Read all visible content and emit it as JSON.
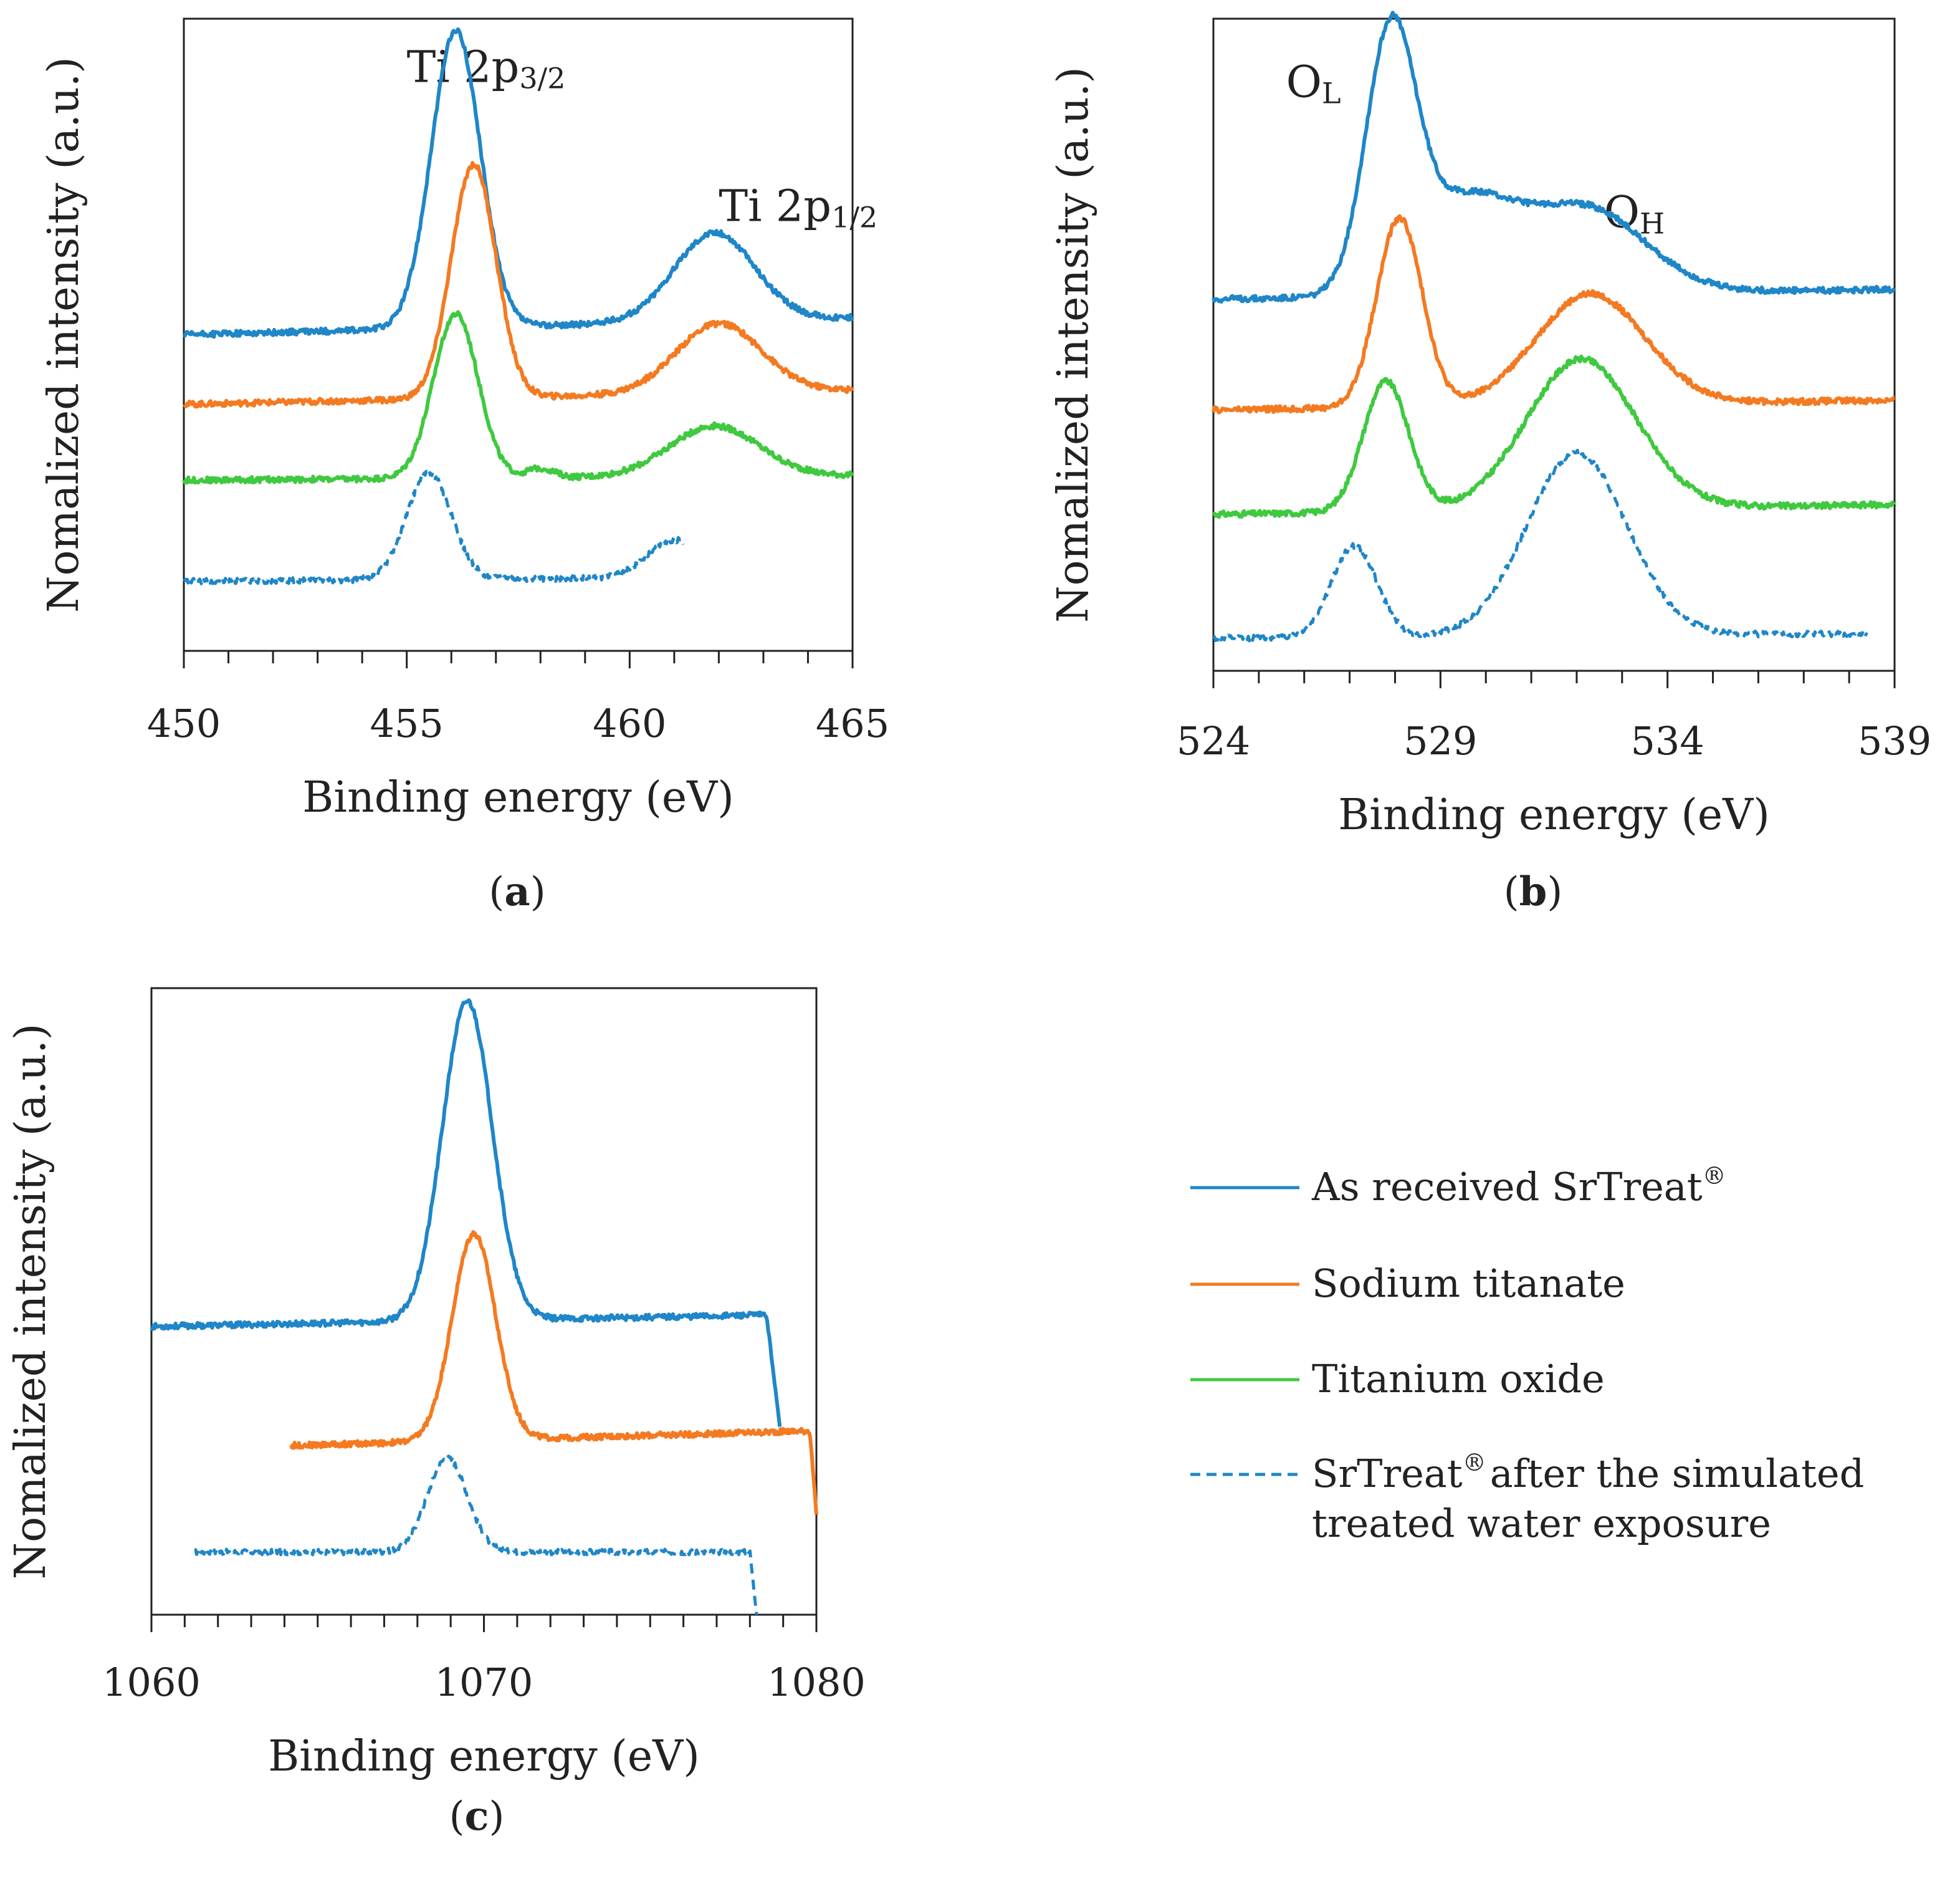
{
  "colors": {
    "as_received": "#1f86c8",
    "sodium_titanate": "#f47a21",
    "titanium_oxide": "#3fc93f",
    "after_exposure": "#1f86c8"
  },
  "legend": {
    "items": [
      {
        "key": "as_received",
        "style": "solid",
        "label": "As received SrTreat",
        "sup": "®",
        "label2": ""
      },
      {
        "key": "sodium_titanate",
        "style": "solid",
        "label": "Sodium titanate",
        "sup": "",
        "label2": ""
      },
      {
        "key": "titanium_oxide",
        "style": "solid",
        "label": "Titanium oxide",
        "sup": "",
        "label2": ""
      },
      {
        "key": "after_exposure",
        "style": "dashed",
        "label": "SrTreat",
        "sup": "®",
        "label2": "after the simulated",
        "label3": "treated water exposure"
      }
    ]
  },
  "chart_data": [
    {
      "id": "a",
      "type": "line",
      "panel_label": "(a)",
      "xlabel": "Binding energy (eV)",
      "ylabel": "Nomalized intensity (a.u.)",
      "xlim": [
        450,
        465
      ],
      "ylim": [
        0,
        100
      ],
      "xticks": [
        450,
        455,
        460,
        465
      ],
      "annotations": [
        {
          "main": "Ti 2p",
          "sub": "3/2",
          "x": 455.0,
          "y": 90
        },
        {
          "main": "Ti 2p",
          "sub": "1/2",
          "x": 462.0,
          "y": 68
        }
      ],
      "series": [
        {
          "name": "As received SrTreat®",
          "key": "as_received",
          "style": "solid",
          "baseline": 50,
          "slope": 0.18,
          "peaks": [
            [
              456.1,
              47,
              0.55
            ],
            [
              461.9,
              14,
              0.9
            ]
          ],
          "xrange": [
            450,
            465
          ]
        },
        {
          "name": "Sodium titanate",
          "key": "sodium_titanate",
          "style": "solid",
          "baseline": 39,
          "slope": 0.15,
          "peaks": [
            [
              456.5,
              37,
              0.5
            ],
            [
              462.0,
              11,
              0.95
            ]
          ],
          "xrange": [
            450,
            465
          ]
        },
        {
          "name": "Titanium oxide",
          "key": "titanium_oxide",
          "style": "solid",
          "baseline": 27,
          "slope": 0.05,
          "peaks": [
            [
              456.1,
              26,
              0.5
            ],
            [
              461.9,
              8,
              1.0
            ],
            [
              458.0,
              1.5,
              0.3
            ]
          ],
          "xrange": [
            450,
            465
          ]
        },
        {
          "name": "SrTreat® after the simulated treated water exposure",
          "key": "after_exposure",
          "style": "dashed",
          "baseline": 11,
          "slope": 0.05,
          "peaks": [
            [
              455.5,
              17,
              0.5
            ],
            [
              461.0,
              6,
              0.6
            ]
          ],
          "xrange": [
            450,
            461.2
          ]
        }
      ]
    },
    {
      "id": "b",
      "type": "line",
      "panel_label": "(b)",
      "xlabel": "Binding energy (eV)",
      "ylabel": "Nomalized intensity (a.u.)",
      "xlim": [
        524,
        539
      ],
      "ylim": [
        0,
        100
      ],
      "xticks": [
        524,
        529,
        534,
        539
      ],
      "annotations": [
        {
          "main": "O",
          "sub": "L",
          "x": 525.6,
          "y": 88
        },
        {
          "main": "O",
          "sub": "H",
          "x": 532.6,
          "y": 68
        }
      ],
      "series": [
        {
          "name": "As received SrTreat®",
          "key": "as_received",
          "style": "solid",
          "baseline": 57,
          "slope": 0.1,
          "peaks": [
            [
              527.9,
              38,
              0.55
            ],
            [
              529.5,
              14,
              1.1
            ],
            [
              532.2,
              13,
              1.3
            ]
          ],
          "xrange": [
            524,
            539
          ]
        },
        {
          "name": "Sodium titanate",
          "key": "sodium_titanate",
          "style": "solid",
          "baseline": 40,
          "slope": 0.1,
          "peaks": [
            [
              528.1,
              29,
              0.5
            ],
            [
              532.3,
              17,
              1.2
            ]
          ],
          "xrange": [
            524,
            539
          ]
        },
        {
          "name": "Titanium oxide",
          "key": "titanium_oxide",
          "style": "solid",
          "baseline": 24,
          "slope": 0.1,
          "peaks": [
            [
              527.8,
              20,
              0.5
            ],
            [
              532.1,
              23,
              1.2
            ]
          ],
          "xrange": [
            524,
            539
          ]
        },
        {
          "name": "SrTreat® after the simulated treated water exposure",
          "key": "after_exposure",
          "style": "dashed",
          "baseline": 5,
          "slope": 0.05,
          "peaks": [
            [
              527.1,
              14,
              0.5
            ],
            [
              532.0,
              28,
              1.1
            ]
          ],
          "xrange": [
            524,
            538.4
          ]
        }
      ]
    },
    {
      "id": "c",
      "type": "line",
      "panel_label": "(c)",
      "xlabel": "Binding energy (eV)",
      "ylabel": "Nomalized intensity (a.u.)",
      "xlim": [
        1060,
        1080
      ],
      "ylim": [
        0,
        100
      ],
      "xticks": [
        1060,
        1070,
        1080
      ],
      "annotations": [],
      "series": [
        {
          "name": "As received SrTreat®",
          "key": "as_received",
          "style": "solid",
          "baseline": 46,
          "slope": 0.1,
          "peaks": [
            [
              1069.5,
              51,
              0.75
            ]
          ],
          "xrange": [
            1060,
            1078.9
          ],
          "dropoff": [
            1078.5,
            1078.9,
            30
          ]
        },
        {
          "name": "Sodium titanate",
          "key": "sodium_titanate",
          "style": "solid",
          "baseline": 27,
          "slope": 0.15,
          "peaks": [
            [
              1069.7,
              33,
              0.65
            ]
          ],
          "xrange": [
            1064.2,
            1080
          ],
          "dropoff": [
            1079.8,
            1080,
            16
          ]
        },
        {
          "name": "SrTreat® after the simulated treated water exposure",
          "key": "after_exposure",
          "style": "dashed",
          "baseline": 10,
          "slope": 0.0,
          "peaks": [
            [
              1068.9,
              15,
              0.6
            ]
          ],
          "xrange": [
            1061.3,
            1078.2
          ],
          "dropoff": [
            1078.0,
            1078.2,
            0
          ]
        }
      ]
    }
  ]
}
